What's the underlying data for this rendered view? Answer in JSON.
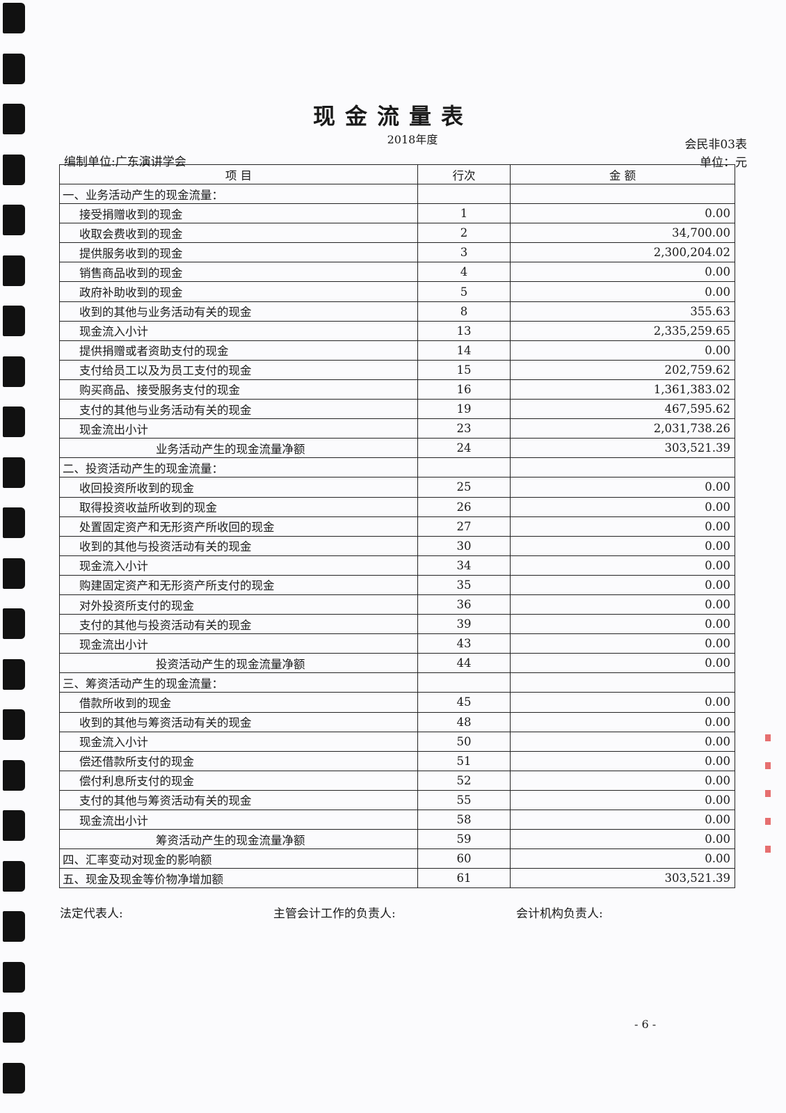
{
  "title": "现金流量表",
  "period": "2018年度",
  "form_no": "会民非03表",
  "unit": "单位：元",
  "organization": "编制单位:广东演讲学会",
  "columns": [
    "项 目",
    "行次",
    "金 额"
  ],
  "rows": [
    {
      "item": "一、业务活动产生的现金流量：",
      "line": "",
      "amount": "",
      "level": 0
    },
    {
      "item": "接受捐赠收到的现金",
      "line": "1",
      "amount": "0.00",
      "level": 1
    },
    {
      "item": "收取会费收到的现金",
      "line": "2",
      "amount": "34,700.00",
      "level": 1
    },
    {
      "item": "提供服务收到的现金",
      "line": "3",
      "amount": "2,300,204.02",
      "level": 1
    },
    {
      "item": "销售商品收到的现金",
      "line": "4",
      "amount": "0.00",
      "level": 1
    },
    {
      "item": "政府补助收到的现金",
      "line": "5",
      "amount": "0.00",
      "level": 1
    },
    {
      "item": "收到的其他与业务活动有关的现金",
      "line": "8",
      "amount": "355.63",
      "level": 1
    },
    {
      "item": "现金流入小计",
      "line": "13",
      "amount": "2,335,259.65",
      "level": 1
    },
    {
      "item": "提供捐赠或者资助支付的现金",
      "line": "14",
      "amount": "0.00",
      "level": 1
    },
    {
      "item": "支付给员工以及为员工支付的现金",
      "line": "15",
      "amount": "202,759.62",
      "level": 1
    },
    {
      "item": "购买商品、接受服务支付的现金",
      "line": "16",
      "amount": "1,361,383.02",
      "level": 1
    },
    {
      "item": "支付的其他与业务活动有关的现金",
      "line": "19",
      "amount": "467,595.62",
      "level": 1
    },
    {
      "item": "现金流出小计",
      "line": "23",
      "amount": "2,031,738.26",
      "level": 1
    },
    {
      "item": "业务活动产生的现金流量净额",
      "line": "24",
      "amount": "303,521.39",
      "level": 2
    },
    {
      "item": "二、投资活动产生的现金流量：",
      "line": "",
      "amount": "",
      "level": 0
    },
    {
      "item": "收回投资所收到的现金",
      "line": "25",
      "amount": "0.00",
      "level": 1
    },
    {
      "item": "取得投资收益所收到的现金",
      "line": "26",
      "amount": "0.00",
      "level": 1
    },
    {
      "item": "处置固定资产和无形资产所收回的现金",
      "line": "27",
      "amount": "0.00",
      "level": 1
    },
    {
      "item": "收到的其他与投资活动有关的现金",
      "line": "30",
      "amount": "0.00",
      "level": 1
    },
    {
      "item": "现金流入小计",
      "line": "34",
      "amount": "0.00",
      "level": 1
    },
    {
      "item": "购建固定资产和无形资产所支付的现金",
      "line": "35",
      "amount": "0.00",
      "level": 1
    },
    {
      "item": "对外投资所支付的现金",
      "line": "36",
      "amount": "0.00",
      "level": 1
    },
    {
      "item": "支付的其他与投资活动有关的现金",
      "line": "39",
      "amount": "0.00",
      "level": 1
    },
    {
      "item": "现金流出小计",
      "line": "43",
      "amount": "0.00",
      "level": 1
    },
    {
      "item": "投资活动产生的现金流量净额",
      "line": "44",
      "amount": "0.00",
      "level": 2
    },
    {
      "item": "三、筹资活动产生的现金流量：",
      "line": "",
      "amount": "",
      "level": 0
    },
    {
      "item": "借款所收到的现金",
      "line": "45",
      "amount": "0.00",
      "level": 1
    },
    {
      "item": "收到的其他与筹资活动有关的现金",
      "line": "48",
      "amount": "0.00",
      "level": 1
    },
    {
      "item": "现金流入小计",
      "line": "50",
      "amount": "0.00",
      "level": 1
    },
    {
      "item": "偿还借款所支付的现金",
      "line": "51",
      "amount": "0.00",
      "level": 1
    },
    {
      "item": "偿付利息所支付的现金",
      "line": "52",
      "amount": "0.00",
      "level": 1
    },
    {
      "item": "支付的其他与筹资活动有关的现金",
      "line": "55",
      "amount": "0.00",
      "level": 1
    },
    {
      "item": "现金流出小计",
      "line": "58",
      "amount": "0.00",
      "level": 1
    },
    {
      "item": "筹资活动产生的现金流量净额",
      "line": "59",
      "amount": "0.00",
      "level": 2
    },
    {
      "item": "四、汇率变动对现金的影响额",
      "line": "60",
      "amount": "0.00",
      "level": 0
    },
    {
      "item": "五、现金及现金等价物净增加额",
      "line": "61",
      "amount": "303,521.39",
      "level": 0
    }
  ],
  "footer": {
    "legal_rep": "法定代表人:",
    "accounting_head": "主管会计工作的负责人:",
    "agency_head": "会计机构负责人:"
  },
  "page_number": "- 6 -"
}
